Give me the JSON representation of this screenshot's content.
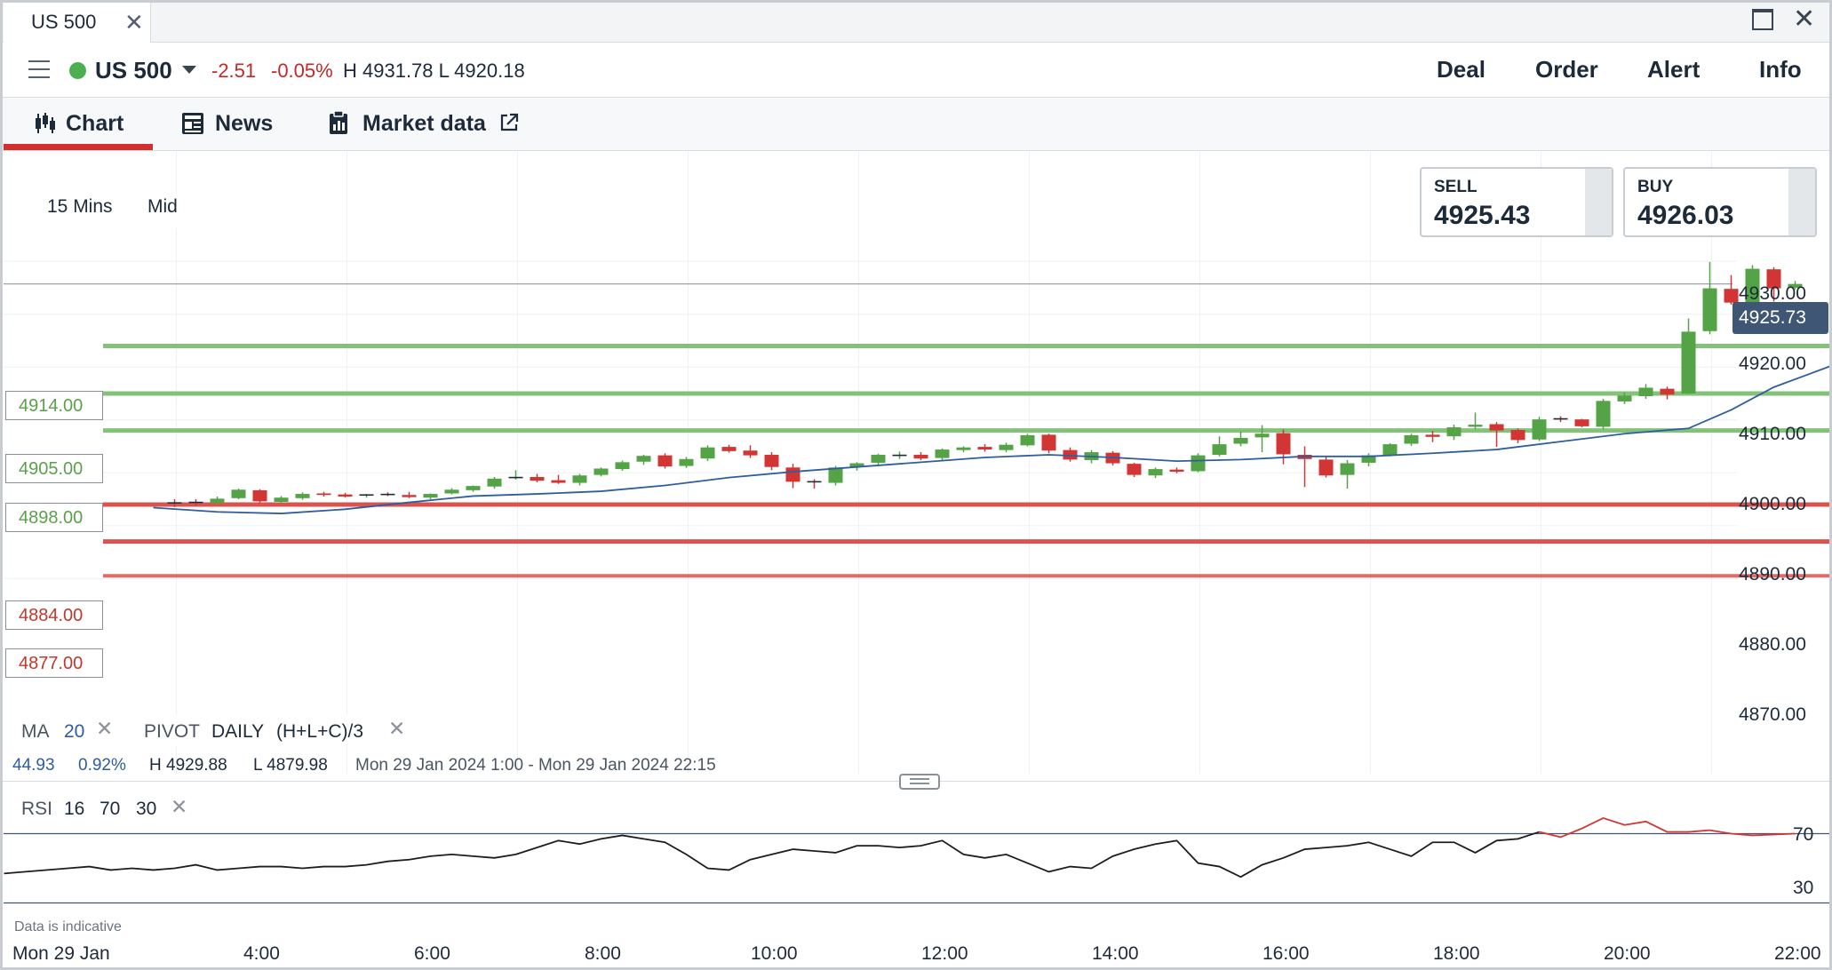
{
  "window": {
    "tab_label": "US 500",
    "close_glyph": "✕",
    "max_icon": "maximize-icon",
    "close_icon": "close-icon"
  },
  "market": {
    "symbol": "US 500",
    "change": "-2.51",
    "change_pct": "-0.05%",
    "high_low": "H 4931.78  L 4920.18",
    "status_color": "#4caf50",
    "negative_color": "#c62828"
  },
  "header_actions": [
    {
      "label": "Deal"
    },
    {
      "label": "Order"
    },
    {
      "label": "Alert"
    },
    {
      "label": "Info"
    }
  ],
  "subnav": {
    "tabs": [
      {
        "label": "Chart",
        "icon": "candlestick-icon",
        "active": true
      },
      {
        "label": "News",
        "icon": "newspaper-icon"
      },
      {
        "label": "Market data",
        "icon": "clipboard-icon",
        "external_icon": "external-link-icon"
      }
    ],
    "accent_color": "#d32f2f"
  },
  "chart_controls": {
    "timeframe": "15 Mins",
    "price_type": "Mid"
  },
  "quotes": {
    "sell": {
      "label": "SELL",
      "value": "4925.43"
    },
    "buy": {
      "label": "BUY",
      "value": "4926.03"
    }
  },
  "current_price": "4925.73",
  "levels": [
    {
      "value": "4914.00",
      "kind": "resistance"
    },
    {
      "value": "4905.00",
      "kind": "resistance"
    },
    {
      "value": "4898.00",
      "kind": "resistance"
    },
    {
      "value": "4884.00",
      "kind": "support"
    },
    {
      "value": "4877.00",
      "kind": "support"
    }
  ],
  "indicators": {
    "ma": {
      "label": "MA",
      "period": "20",
      "remove_glyph": "✕"
    },
    "pivot": {
      "label": "PIVOT",
      "period": "DAILY",
      "formula": "(H+L+C)/3",
      "remove_glyph": "✕"
    },
    "rsi": {
      "label": "RSI",
      "period": "16",
      "upper": "70",
      "lower": "30",
      "remove_glyph": "✕"
    }
  },
  "range_info": {
    "change": "44.93",
    "change_pct": "0.92%",
    "high": "H 4929.88",
    "low": "L 4879.98",
    "period": "Mon 29 Jan 2024 1:00 - Mon 29 Jan 2024 22:15"
  },
  "disclaimer": "Data is indicative",
  "chart_data": {
    "type": "candlestick",
    "x_labels": [
      "Mon 29 Jan",
      "4:00",
      "6:00",
      "8:00",
      "10:00",
      "12:00",
      "14:00",
      "16:00",
      "18:00",
      "20:00",
      "22:00"
    ],
    "y_ticks": [
      "4930.00",
      "4920.00",
      "4910.00",
      "4900.00",
      "4890.00",
      "4880.00",
      "4870.00"
    ],
    "ylim": [
      4865,
      4935
    ],
    "interval_minutes": 15,
    "candles": [
      {
        "t": 0.25,
        "o": 4881.5,
        "h": 4884.0,
        "l": 4879.98,
        "c": 4883.0
      },
      {
        "t": 2.0,
        "o": 4884.3,
        "h": 4885.0,
        "l": 4883.5,
        "c": 4884.2
      },
      {
        "t": 2.25,
        "o": 4884.4,
        "h": 4885.0,
        "l": 4883.7,
        "c": 4884.3
      },
      {
        "t": 2.5,
        "o": 4884.3,
        "h": 4885.5,
        "l": 4884.0,
        "c": 4885.1
      },
      {
        "t": 2.75,
        "o": 4885.2,
        "h": 4887.0,
        "l": 4885.0,
        "c": 4886.8
      },
      {
        "t": 3.0,
        "o": 4886.7,
        "h": 4886.9,
        "l": 4884.3,
        "c": 4884.6
      },
      {
        "t": 3.25,
        "o": 4884.5,
        "h": 4885.6,
        "l": 4884.1,
        "c": 4885.3
      },
      {
        "t": 3.5,
        "o": 4885.2,
        "h": 4886.3,
        "l": 4884.9,
        "c": 4886.0
      },
      {
        "t": 3.75,
        "o": 4886.1,
        "h": 4886.4,
        "l": 4885.5,
        "c": 4885.8
      },
      {
        "t": 4.0,
        "o": 4885.9,
        "h": 4886.2,
        "l": 4885.3,
        "c": 4885.5
      },
      {
        "t": 4.25,
        "o": 4885.6,
        "h": 4886.0,
        "l": 4885.3,
        "c": 4885.8
      },
      {
        "t": 4.5,
        "o": 4885.9,
        "h": 4886.3,
        "l": 4885.6,
        "c": 4885.7
      },
      {
        "t": 4.75,
        "o": 4885.8,
        "h": 4886.4,
        "l": 4885.2,
        "c": 4885.4
      },
      {
        "t": 5.0,
        "o": 4885.3,
        "h": 4886.1,
        "l": 4885.0,
        "c": 4886.0
      },
      {
        "t": 5.25,
        "o": 4886.1,
        "h": 4887.1,
        "l": 4885.9,
        "c": 4886.8
      },
      {
        "t": 5.5,
        "o": 4886.7,
        "h": 4887.6,
        "l": 4886.4,
        "c": 4887.5
      },
      {
        "t": 5.75,
        "o": 4887.4,
        "h": 4889.2,
        "l": 4887.0,
        "c": 4888.9
      },
      {
        "t": 6.0,
        "o": 4889.0,
        "h": 4890.5,
        "l": 4888.7,
        "c": 4889.1
      },
      {
        "t": 6.25,
        "o": 4889.2,
        "h": 4889.8,
        "l": 4888.2,
        "c": 4888.5
      },
      {
        "t": 6.5,
        "o": 4888.6,
        "h": 4889.6,
        "l": 4887.9,
        "c": 4888.1
      },
      {
        "t": 6.75,
        "o": 4888.1,
        "h": 4889.8,
        "l": 4887.6,
        "c": 4889.5
      },
      {
        "t": 7.0,
        "o": 4889.6,
        "h": 4891.0,
        "l": 4889.3,
        "c": 4890.8
      },
      {
        "t": 7.25,
        "o": 4890.7,
        "h": 4892.3,
        "l": 4890.4,
        "c": 4892.0
      },
      {
        "t": 7.5,
        "o": 4892.1,
        "h": 4893.4,
        "l": 4891.5,
        "c": 4893.2
      },
      {
        "t": 7.75,
        "o": 4893.3,
        "h": 4893.7,
        "l": 4890.8,
        "c": 4891.2
      },
      {
        "t": 8.0,
        "o": 4891.3,
        "h": 4893.0,
        "l": 4890.9,
        "c": 4892.6
      },
      {
        "t": 8.25,
        "o": 4892.7,
        "h": 4895.2,
        "l": 4892.2,
        "c": 4894.8
      },
      {
        "t": 8.5,
        "o": 4894.9,
        "h": 4895.3,
        "l": 4893.8,
        "c": 4894.1
      },
      {
        "t": 8.75,
        "o": 4894.2,
        "h": 4895.2,
        "l": 4892.8,
        "c": 4893.3
      },
      {
        "t": 9.0,
        "o": 4893.4,
        "h": 4893.9,
        "l": 4890.5,
        "c": 4891.1
      },
      {
        "t": 9.25,
        "o": 4891.0,
        "h": 4891.7,
        "l": 4887.1,
        "c": 4888.3
      },
      {
        "t": 9.5,
        "o": 4888.3,
        "h": 4888.8,
        "l": 4887.0,
        "c": 4888.2
      },
      {
        "t": 9.75,
        "o": 4888.1,
        "h": 4891.3,
        "l": 4887.6,
        "c": 4891.0
      },
      {
        "t": 10.0,
        "o": 4891.1,
        "h": 4892.0,
        "l": 4890.4,
        "c": 4891.8
      },
      {
        "t": 10.25,
        "o": 4891.9,
        "h": 4893.6,
        "l": 4891.3,
        "c": 4893.4
      },
      {
        "t": 10.5,
        "o": 4893.3,
        "h": 4894.0,
        "l": 4892.6,
        "c": 4893.3
      },
      {
        "t": 10.75,
        "o": 4893.4,
        "h": 4893.9,
        "l": 4892.4,
        "c": 4892.7
      },
      {
        "t": 11.0,
        "o": 4892.8,
        "h": 4894.6,
        "l": 4892.4,
        "c": 4894.4
      },
      {
        "t": 11.25,
        "o": 4894.3,
        "h": 4895.0,
        "l": 4893.9,
        "c": 4894.8
      },
      {
        "t": 11.5,
        "o": 4894.9,
        "h": 4895.4,
        "l": 4894.0,
        "c": 4894.4
      },
      {
        "t": 11.75,
        "o": 4894.3,
        "h": 4895.7,
        "l": 4893.9,
        "c": 4895.3
      },
      {
        "t": 12.0,
        "o": 4895.2,
        "h": 4897.4,
        "l": 4895.0,
        "c": 4897.1
      },
      {
        "t": 12.25,
        "o": 4897.2,
        "h": 4897.4,
        "l": 4893.7,
        "c": 4894.2
      },
      {
        "t": 12.5,
        "o": 4894.3,
        "h": 4894.8,
        "l": 4892.1,
        "c": 4892.5
      },
      {
        "t": 12.75,
        "o": 4892.4,
        "h": 4894.3,
        "l": 4891.8,
        "c": 4893.9
      },
      {
        "t": 13.0,
        "o": 4893.8,
        "h": 4894.1,
        "l": 4891.4,
        "c": 4891.8
      },
      {
        "t": 13.25,
        "o": 4891.7,
        "h": 4891.9,
        "l": 4889.2,
        "c": 4889.6
      },
      {
        "t": 13.5,
        "o": 4889.5,
        "h": 4891.0,
        "l": 4889.0,
        "c": 4890.7
      },
      {
        "t": 13.75,
        "o": 4890.6,
        "h": 4891.0,
        "l": 4889.9,
        "c": 4890.2
      },
      {
        "t": 14.0,
        "o": 4890.3,
        "h": 4893.7,
        "l": 4890.1,
        "c": 4893.3
      },
      {
        "t": 14.25,
        "o": 4893.4,
        "h": 4896.9,
        "l": 4893.1,
        "c": 4895.4
      },
      {
        "t": 14.5,
        "o": 4895.5,
        "h": 4897.8,
        "l": 4895.0,
        "c": 4896.6
      },
      {
        "t": 14.75,
        "o": 4896.7,
        "h": 4899.0,
        "l": 4893.9,
        "c": 4897.4
      },
      {
        "t": 15.0,
        "o": 4897.5,
        "h": 4898.2,
        "l": 4891.6,
        "c": 4893.5
      },
      {
        "t": 15.25,
        "o": 4893.4,
        "h": 4895.0,
        "l": 4887.3,
        "c": 4892.6
      },
      {
        "t": 15.5,
        "o": 4892.5,
        "h": 4893.1,
        "l": 4889.1,
        "c": 4889.5
      },
      {
        "t": 15.75,
        "o": 4889.6,
        "h": 4892.4,
        "l": 4887.0,
        "c": 4891.8
      },
      {
        "t": 16.0,
        "o": 4891.9,
        "h": 4893.7,
        "l": 4891.2,
        "c": 4893.3
      },
      {
        "t": 16.25,
        "o": 4893.4,
        "h": 4895.6,
        "l": 4893.1,
        "c": 4895.4
      },
      {
        "t": 16.5,
        "o": 4895.5,
        "h": 4897.4,
        "l": 4895.1,
        "c": 4897.1
      },
      {
        "t": 16.75,
        "o": 4897.2,
        "h": 4897.9,
        "l": 4895.8,
        "c": 4896.8
      },
      {
        "t": 17.0,
        "o": 4896.9,
        "h": 4899.1,
        "l": 4896.2,
        "c": 4898.6
      },
      {
        "t": 17.25,
        "o": 4898.7,
        "h": 4901.4,
        "l": 4898.2,
        "c": 4899.1
      },
      {
        "t": 17.5,
        "o": 4899.2,
        "h": 4899.6,
        "l": 4894.9,
        "c": 4898.0
      },
      {
        "t": 17.75,
        "o": 4898.1,
        "h": 4898.4,
        "l": 4895.6,
        "c": 4896.2
      },
      {
        "t": 18.0,
        "o": 4896.3,
        "h": 4900.6,
        "l": 4896.0,
        "c": 4900.1
      },
      {
        "t": 18.25,
        "o": 4900.2,
        "h": 4900.7,
        "l": 4899.6,
        "c": 4900.0
      },
      {
        "t": 18.5,
        "o": 4900.1,
        "h": 4900.2,
        "l": 4898.6,
        "c": 4898.8
      },
      {
        "t": 18.75,
        "o": 4898.7,
        "h": 4904.0,
        "l": 4898.2,
        "c": 4903.6
      },
      {
        "t": 19.0,
        "o": 4903.5,
        "h": 4905.2,
        "l": 4903.0,
        "c": 4904.6
      },
      {
        "t": 19.25,
        "o": 4904.5,
        "h": 4906.8,
        "l": 4904.0,
        "c": 4906.1
      },
      {
        "t": 19.5,
        "o": 4905.9,
        "h": 4906.3,
        "l": 4903.9,
        "c": 4904.8
      },
      {
        "t": 19.75,
        "o": 4905.0,
        "h": 4919.2,
        "l": 4904.9,
        "c": 4916.7
      },
      {
        "t": 20.0,
        "o": 4916.8,
        "h": 4929.88,
        "l": 4916.2,
        "c": 4924.9
      },
      {
        "t": 20.25,
        "o": 4924.8,
        "h": 4927.4,
        "l": 4921.8,
        "c": 4922.2
      },
      {
        "t": 20.5,
        "o": 4922.3,
        "h": 4929.3,
        "l": 4920.2,
        "c": 4928.6
      },
      {
        "t": 20.75,
        "o": 4928.5,
        "h": 4928.9,
        "l": 4922.4,
        "c": 4924.9
      },
      {
        "t": 21.0,
        "o": 4925.0,
        "h": 4926.3,
        "l": 4924.7,
        "c": 4925.73
      }
    ],
    "ma20": [
      [
        1.75,
        4883.4
      ],
      [
        2.5,
        4882.6
      ],
      [
        3.25,
        4882.3
      ],
      [
        4.0,
        4883.1
      ],
      [
        4.75,
        4884.4
      ],
      [
        5.5,
        4885.6
      ],
      [
        6.25,
        4886.0
      ],
      [
        7.0,
        4886.5
      ],
      [
        7.75,
        4887.6
      ],
      [
        8.5,
        4889.1
      ],
      [
        9.25,
        4890.2
      ],
      [
        10.0,
        4891.1
      ],
      [
        10.75,
        4892.0
      ],
      [
        11.5,
        4892.9
      ],
      [
        12.25,
        4893.4
      ],
      [
        13.0,
        4892.9
      ],
      [
        13.75,
        4892.2
      ],
      [
        14.5,
        4892.5
      ],
      [
        15.25,
        4893.1
      ],
      [
        16.0,
        4893.1
      ],
      [
        16.75,
        4893.7
      ],
      [
        17.5,
        4894.4
      ],
      [
        18.25,
        4895.9
      ],
      [
        19.0,
        4897.4
      ],
      [
        19.75,
        4898.4
      ],
      [
        20.25,
        4901.9
      ],
      [
        20.75,
        4906.2
      ],
      [
        21.5,
        4910.7
      ],
      [
        22.0,
        4913.1
      ]
    ],
    "rsi": {
      "ylim": [
        0,
        100
      ],
      "upper": 70,
      "lower": 30,
      "points": [
        [
          0.0,
          47
        ],
        [
          0.25,
          48
        ],
        [
          0.75,
          50
        ],
        [
          1.0,
          51
        ],
        [
          1.25,
          49
        ],
        [
          1.5,
          50
        ],
        [
          1.75,
          49
        ],
        [
          2.0,
          50
        ],
        [
          2.25,
          52
        ],
        [
          2.5,
          49
        ],
        [
          2.75,
          50
        ],
        [
          3.0,
          51
        ],
        [
          3.25,
          51
        ],
        [
          3.5,
          50
        ],
        [
          3.75,
          51
        ],
        [
          4.0,
          51
        ],
        [
          4.25,
          52
        ],
        [
          4.5,
          54
        ],
        [
          4.75,
          55
        ],
        [
          5.0,
          57
        ],
        [
          5.25,
          58
        ],
        [
          5.5,
          57
        ],
        [
          5.75,
          56
        ],
        [
          6.0,
          58
        ],
        [
          6.25,
          62
        ],
        [
          6.5,
          66
        ],
        [
          6.75,
          64
        ],
        [
          7.0,
          67
        ],
        [
          7.25,
          69
        ],
        [
          7.5,
          67
        ],
        [
          7.75,
          65
        ],
        [
          8.0,
          58
        ],
        [
          8.25,
          50
        ],
        [
          8.5,
          49
        ],
        [
          8.75,
          55
        ],
        [
          9.0,
          58
        ],
        [
          9.25,
          61
        ],
        [
          9.5,
          60
        ],
        [
          9.75,
          59
        ],
        [
          10.0,
          63
        ],
        [
          10.25,
          63
        ],
        [
          10.5,
          62
        ],
        [
          10.75,
          63
        ],
        [
          11.0,
          66
        ],
        [
          11.25,
          58
        ],
        [
          11.5,
          56
        ],
        [
          11.75,
          58
        ],
        [
          12.0,
          53
        ],
        [
          12.25,
          48
        ],
        [
          12.5,
          51
        ],
        [
          12.75,
          50
        ],
        [
          13.0,
          57
        ],
        [
          13.25,
          61
        ],
        [
          13.5,
          64
        ],
        [
          13.75,
          66
        ],
        [
          14.0,
          53
        ],
        [
          14.25,
          51
        ],
        [
          14.5,
          45
        ],
        [
          14.75,
          52
        ],
        [
          15.0,
          56
        ],
        [
          15.25,
          61
        ],
        [
          15.5,
          62
        ],
        [
          15.75,
          63
        ],
        [
          16.0,
          65
        ],
        [
          16.25,
          61
        ],
        [
          16.5,
          57
        ],
        [
          16.75,
          65
        ],
        [
          17.0,
          65
        ],
        [
          17.25,
          59
        ],
        [
          17.5,
          66
        ],
        [
          17.75,
          67
        ],
        [
          18.0,
          71
        ],
        [
          18.25,
          68
        ],
        [
          18.5,
          73
        ],
        [
          18.75,
          79
        ],
        [
          19.0,
          75
        ],
        [
          19.25,
          77
        ],
        [
          19.5,
          71
        ],
        [
          19.75,
          71
        ],
        [
          20.0,
          72
        ],
        [
          20.25,
          70
        ],
        [
          20.5,
          69
        ],
        [
          21.0,
          70
        ]
      ],
      "y_ticks": [
        "70",
        "30"
      ]
    },
    "colors": {
      "up": "#55a347",
      "down": "#d13634",
      "ma": "#2f5d9e",
      "resistance": "#84c27a",
      "support": "#d9534f",
      "rsi": "#1d1d1d",
      "rsi_over": "#d13634"
    }
  }
}
